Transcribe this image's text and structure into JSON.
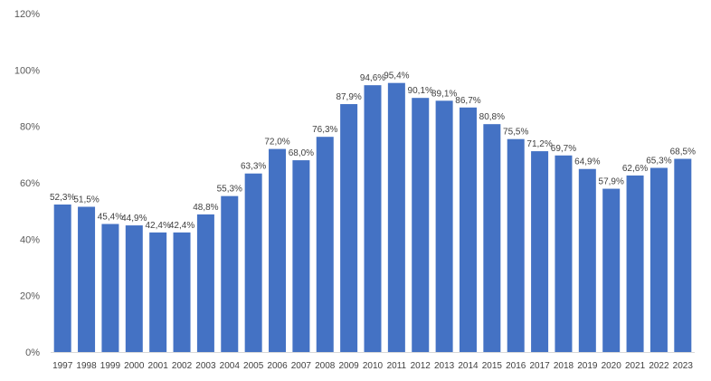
{
  "chart_data": {
    "type": "bar",
    "title": "",
    "xlabel": "",
    "ylabel": "",
    "ylim": [
      0,
      120
    ],
    "y_ticks": [
      "0%",
      "20%",
      "40%",
      "60%",
      "80%",
      "100%",
      "120%"
    ],
    "y_tick_values": [
      0,
      20,
      40,
      60,
      80,
      100,
      120
    ],
    "grid": false,
    "bar_color": "#4472C4",
    "categories": [
      "1997",
      "1998",
      "1999",
      "2000",
      "2001",
      "2002",
      "2003",
      "2004",
      "2005",
      "2006",
      "2007",
      "2008",
      "2009",
      "2010",
      "2011",
      "2012",
      "2013",
      "2014",
      "2015",
      "2016",
      "2017",
      "2018",
      "2019",
      "2020",
      "2021",
      "2022",
      "2023"
    ],
    "values": [
      52.3,
      51.5,
      45.4,
      44.9,
      42.4,
      42.4,
      48.8,
      55.3,
      63.3,
      72.0,
      68.0,
      76.3,
      87.9,
      94.6,
      95.4,
      90.1,
      89.1,
      86.7,
      80.8,
      75.5,
      71.2,
      69.7,
      64.9,
      57.9,
      62.6,
      65.3,
      68.5
    ],
    "data_labels": [
      "52,3%",
      "51,5%",
      "45,4%",
      "44,9%",
      "42,4%",
      "42,4%",
      "48,8%",
      "55,3%",
      "63,3%",
      "72,0%",
      "68,0%",
      "76,3%",
      "87,9%",
      "94,6%",
      "95,4%",
      "90,1%",
      "89,1%",
      "86,7%",
      "80,8%",
      "75,5%",
      "71,2%",
      "69,7%",
      "64,9%",
      "57,9%",
      "62,6%",
      "65,3%",
      "68,5%"
    ]
  }
}
